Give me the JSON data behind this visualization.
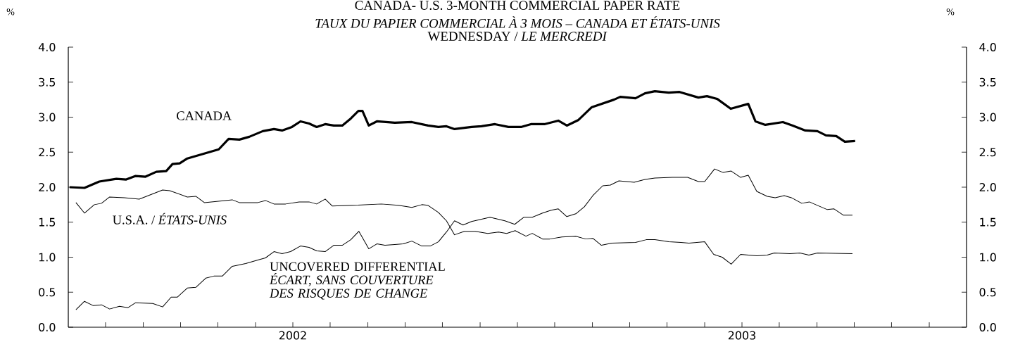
{
  "chart_data": {
    "type": "line",
    "title": "CANADA- U.S. 3-MONTH COMMERCIAL PAPER RATE",
    "subtitle": "*TAUX DU PAPIER COMMERCIAL À 3 MOIS – CANADA ET ÉTATS-UNIS*",
    "annotations": [
      "WEDNESDAY / *LE MERCREDI*"
    ],
    "ylabel": "%",
    "y2label": "%",
    "xlim": [
      2002,
      2004
    ],
    "xticks": [
      {
        "value": 2002.083,
        "label": null
      },
      {
        "value": 2002.167,
        "label": null
      },
      {
        "value": 2002.25,
        "label": null
      },
      {
        "value": 2002.333,
        "label": null
      },
      {
        "value": 2002.417,
        "label": null
      },
      {
        "value": 2002.5,
        "label": "2002"
      },
      {
        "value": 2002.583,
        "label": null
      },
      {
        "value": 2002.667,
        "label": null
      },
      {
        "value": 2002.75,
        "label": null
      },
      {
        "value": 2002.833,
        "label": null
      },
      {
        "value": 2002.917,
        "label": null
      },
      {
        "value": 2003,
        "label": null
      },
      {
        "value": 2003.083,
        "label": null
      },
      {
        "value": 2003.167,
        "label": null
      },
      {
        "value": 2003.25,
        "label": null
      },
      {
        "value": 2003.333,
        "label": null
      },
      {
        "value": 2003.417,
        "label": null
      },
      {
        "value": 2003.5,
        "label": "2003"
      },
      {
        "value": 2003.583,
        "label": null
      },
      {
        "value": 2003.667,
        "label": null
      },
      {
        "value": 2003.75,
        "label": null
      },
      {
        "value": 2003.833,
        "label": null
      },
      {
        "value": 2003.917,
        "label": null
      }
    ],
    "ylim": [
      0,
      4
    ],
    "yticks": [
      {
        "value": 0,
        "label": "0.0"
      },
      {
        "value": 0.5,
        "label": "0.5"
      },
      {
        "value": 1,
        "label": "1.0"
      },
      {
        "value": 1.5,
        "label": "1.5"
      },
      {
        "value": 2,
        "label": "2.0"
      },
      {
        "value": 2.5,
        "label": "2.5"
      },
      {
        "value": 3,
        "label": "3.0"
      },
      {
        "value": 3.5,
        "label": "3.5"
      },
      {
        "value": 4,
        "label": "4.0"
      }
    ],
    "y2lim": [
      0,
      4
    ],
    "y2ticks": [
      {
        "value": 0,
        "label": "0.0"
      },
      {
        "value": 0.5,
        "label": "0.5"
      },
      {
        "value": 1,
        "label": "1.0"
      },
      {
        "value": 1.5,
        "label": "1.5"
      },
      {
        "value": 2,
        "label": "2.0"
      },
      {
        "value": 2.5,
        "label": "2.5"
      },
      {
        "value": 3,
        "label": "3.0"
      },
      {
        "value": 3.5,
        "label": "3.5"
      },
      {
        "value": 4,
        "label": "4.0"
      }
    ],
    "series": [
      {
        "name": "CANADA",
        "color": "#000000",
        "x": [
          2002.003,
          2002.036,
          2002.069,
          2002.107,
          2002.129,
          2002.15,
          2002.172,
          2002.196,
          2002.218,
          2002.232,
          2002.248,
          2002.265,
          2002.335,
          2002.357,
          2002.381,
          2002.403,
          2002.433,
          2002.458,
          2002.476,
          2002.498,
          2002.517,
          2002.536,
          2002.553,
          2002.572,
          2002.591,
          2002.61,
          2002.629,
          2002.646,
          2002.655,
          2002.669,
          2002.687,
          2002.727,
          2002.765,
          2002.801,
          2002.824,
          2002.842,
          2002.86,
          2002.898,
          2002.92,
          2002.95,
          2002.98,
          2003.008,
          2003.03,
          2003.06,
          2003.091,
          2003.11,
          2003.136,
          2003.165,
          2003.215,
          2003.229,
          2003.263,
          2003.284,
          2003.306,
          2003.337,
          2003.361,
          2003.403,
          2003.422,
          2003.445,
          2003.475,
          2003.514,
          2003.53,
          2003.552,
          2003.591,
          2003.613,
          2003.641,
          2003.668,
          2003.687,
          2003.71,
          2003.729,
          2003.752
        ],
        "values": [
          2.0,
          1.99,
          2.08,
          2.12,
          2.11,
          2.16,
          2.15,
          2.22,
          2.23,
          2.33,
          2.34,
          2.41,
          2.54,
          2.69,
          2.68,
          2.72,
          2.8,
          2.83,
          2.81,
          2.86,
          2.94,
          2.91,
          2.86,
          2.9,
          2.88,
          2.88,
          2.98,
          3.09,
          3.09,
          2.88,
          2.94,
          2.92,
          2.93,
          2.88,
          2.86,
          2.87,
          2.83,
          2.86,
          2.87,
          2.9,
          2.86,
          2.86,
          2.9,
          2.9,
          2.95,
          2.88,
          2.96,
          3.14,
          3.25,
          3.29,
          3.27,
          3.34,
          3.37,
          3.35,
          3.36,
          3.28,
          3.3,
          3.26,
          3.12,
          3.19,
          2.94,
          2.89,
          2.93,
          2.88,
          2.81,
          2.8,
          2.74,
          2.73,
          2.65,
          2.66
        ]
      },
      {
        "name": "U.S.A. / *ÉTATS-UNIS*",
        "color": "#000000",
        "x": [
          2002.017,
          2002.036,
          2002.058,
          2002.074,
          2002.092,
          2002.125,
          2002.158,
          2002.21,
          2002.226,
          2002.265,
          2002.284,
          2002.303,
          2002.365,
          2002.381,
          2002.422,
          2002.439,
          2002.458,
          2002.484,
          2002.514,
          2002.536,
          2002.553,
          2002.572,
          2002.588,
          2002.632,
          2002.697,
          2002.735,
          2002.765,
          2002.787,
          2002.801,
          2002.824,
          2002.842,
          2002.86,
          2002.882,
          2002.906,
          2002.934,
          2002.958,
          2002.976,
          2002.995,
          2003.019,
          2003.033,
          2003.056,
          2003.072,
          2003.099,
          2003.13,
          2003.152,
          2003.168,
          2003.187,
          2003.21,
          2003.263,
          2003.287,
          2003.306,
          2003.337,
          2003.364,
          2003.382,
          2003.417,
          2003.437,
          2003.456,
          2003.476,
          2003.497,
          2003.533,
          2003.556,
          2003.572,
          2003.607,
          2003.629,
          2003.649,
          2003.668,
          2003.746
        ],
        "values": [
          1.78,
          1.63,
          1.75,
          1.77,
          1.86,
          1.85,
          1.83,
          1.96,
          1.95,
          1.86,
          1.87,
          1.78,
          1.82,
          1.78,
          1.78,
          1.81,
          1.76,
          1.76,
          1.79,
          1.79,
          1.76,
          1.83,
          1.73,
          1.74,
          1.76,
          1.74,
          1.71,
          1.75,
          1.74,
          1.64,
          1.52,
          1.32,
          1.37,
          1.37,
          1.34,
          1.36,
          1.34,
          1.38,
          1.3,
          1.34,
          1.26,
          1.26,
          1.29,
          1.3,
          1.26,
          1.27,
          1.17,
          1.2,
          1.21,
          1.25,
          1.25,
          1.22,
          1.21,
          1.2,
          1.22,
          1.04,
          1.0,
          0.9,
          1.04,
          1.02,
          1.03,
          1.06,
          1.05,
          1.06,
          1.03,
          1.06,
          1.05
        ]
      },
      {
        "name": "UNCOVERED DIFFERENTIAL *ÉCART, SANS COUVERTURE DES RISQUES DE CHANGE*",
        "color": "#000000",
        "x": [
          2002.017,
          2002.036,
          2002.055,
          2002.074,
          2002.092,
          2002.114,
          2002.133,
          2002.15,
          2002.188,
          2002.21,
          2002.229,
          2002.243,
          2002.265,
          2002.284,
          2002.306,
          2002.324,
          2002.343,
          2002.365,
          2002.395,
          2002.422,
          2002.439,
          2002.458,
          2002.476,
          2002.495,
          2002.517,
          2002.536,
          2002.553,
          2002.572,
          2002.591,
          2002.61,
          2002.629,
          2002.647,
          2002.669,
          2002.687,
          2002.705,
          2002.727,
          2002.746,
          2002.765,
          2002.787,
          2002.806,
          2002.824,
          2002.842,
          2002.86,
          2002.879,
          2002.898,
          2002.939,
          2002.972,
          2002.994,
          2003.014,
          2003.033,
          2003.056,
          2003.075,
          2003.091,
          2003.11,
          2003.13,
          2003.149,
          2003.168,
          2003.19,
          2003.207,
          2003.226,
          2003.26,
          2003.284,
          2003.306,
          2003.345,
          2003.379,
          2003.403,
          2003.417,
          2003.439,
          2003.458,
          2003.476,
          2003.497,
          2003.514,
          2003.533,
          2003.556,
          2003.574,
          2003.594,
          2003.61,
          2003.633,
          2003.65,
          2003.668,
          2003.69,
          2003.705,
          2003.726,
          2003.746
        ],
        "values": [
          0.25,
          0.37,
          0.31,
          0.32,
          0.26,
          0.3,
          0.28,
          0.35,
          0.34,
          0.29,
          0.43,
          0.43,
          0.56,
          0.57,
          0.7,
          0.73,
          0.73,
          0.87,
          0.91,
          0.96,
          0.99,
          1.08,
          1.05,
          1.08,
          1.16,
          1.14,
          1.09,
          1.08,
          1.17,
          1.17,
          1.25,
          1.37,
          1.12,
          1.19,
          1.17,
          1.18,
          1.19,
          1.23,
          1.16,
          1.16,
          1.22,
          1.36,
          1.52,
          1.46,
          1.51,
          1.57,
          1.52,
          1.47,
          1.57,
          1.57,
          1.63,
          1.67,
          1.69,
          1.58,
          1.62,
          1.72,
          1.88,
          2.02,
          2.03,
          2.09,
          2.07,
          2.11,
          2.13,
          2.14,
          2.14,
          2.08,
          2.08,
          2.26,
          2.21,
          2.23,
          2.14,
          2.17,
          1.94,
          1.87,
          1.85,
          1.88,
          1.85,
          1.77,
          1.79,
          1.74,
          1.68,
          1.69,
          1.6,
          1.6
        ]
      }
    ]
  }
}
